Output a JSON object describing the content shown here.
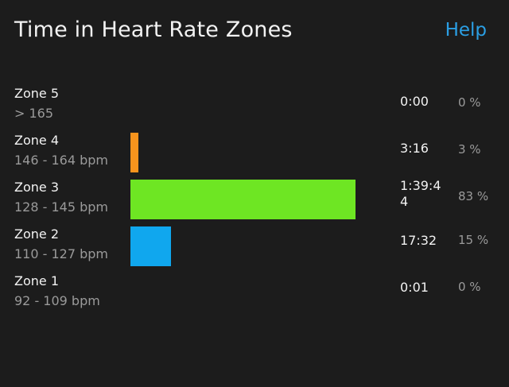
{
  "header": {
    "title": "Time in Heart Rate Zones",
    "help_label": "Help"
  },
  "zones": [
    {
      "name": "Zone 5",
      "range": "> 165",
      "time": "0:00",
      "percent": "0 %",
      "fraction": 0.0,
      "color": "#f7941d"
    },
    {
      "name": "Zone 4",
      "range": "146 - 164 bpm",
      "time": "3:16",
      "percent": "3 %",
      "fraction": 0.03,
      "color": "#f7941d"
    },
    {
      "name": "Zone 3",
      "range": "128 - 145 bpm",
      "time": "1:39:44",
      "percent": "83 %",
      "fraction": 0.83,
      "color": "#6ee623"
    },
    {
      "name": "Zone 2",
      "range": "110 - 127 bpm",
      "time": "17:32",
      "percent": "15 %",
      "fraction": 0.15,
      "color": "#10a7ee"
    },
    {
      "name": "Zone 1",
      "range": "92 - 109 bpm",
      "time": "0:01",
      "percent": "0 %",
      "fraction": 0.0,
      "color": "#9a9a9a"
    }
  ]
}
